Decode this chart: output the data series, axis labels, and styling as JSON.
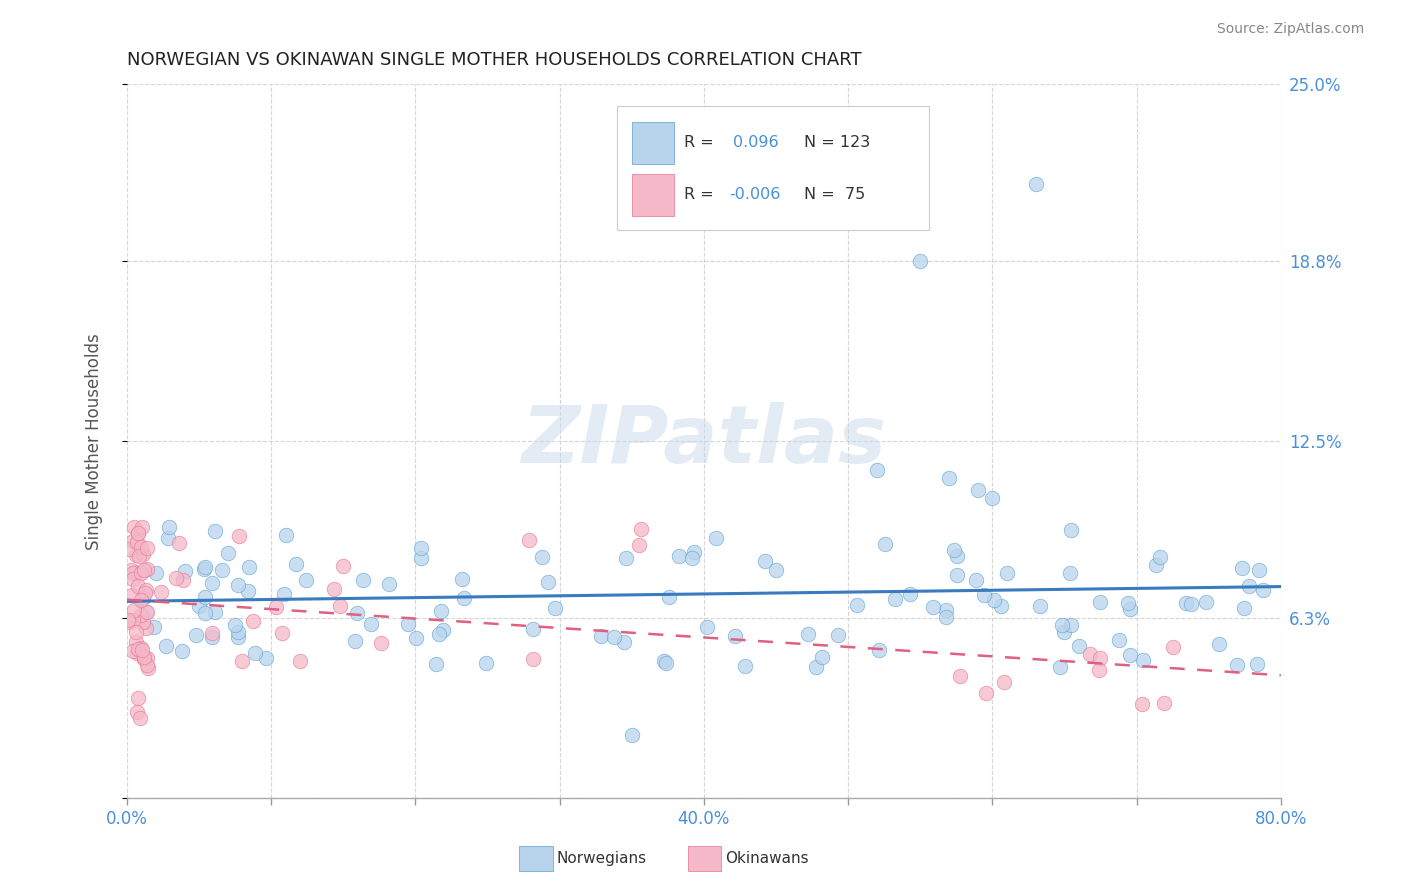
{
  "title": "NORWEGIAN VS OKINAWAN SINGLE MOTHER HOUSEHOLDS CORRELATION CHART",
  "source": "Source: ZipAtlas.com",
  "ylabel": "Single Mother Households",
  "xlim": [
    0,
    0.8
  ],
  "ylim": [
    0,
    0.25
  ],
  "yticks": [
    0.0,
    0.063,
    0.125,
    0.188,
    0.25
  ],
  "ytick_labels_right": [
    "",
    "6.3%",
    "12.5%",
    "18.8%",
    "25.0%"
  ],
  "r_norwegian": 0.096,
  "n_norwegian": 123,
  "r_okinawan": -0.006,
  "n_okinawan": 75,
  "norwegian_fill": "#b8d4ed",
  "okinawan_fill": "#f4b8c8",
  "norwegian_edge": "#5a9fd4",
  "okinawan_edge": "#e87090",
  "trend_norwegian_color": "#3a7abf",
  "trend_okinawan_color": "#e06080",
  "watermark_text": "ZIPatlas",
  "background_color": "#ffffff",
  "grid_color": "#cccccc",
  "legend_text_color": "#4a90d9",
  "axis_label_color": "#555555",
  "title_color": "#222222",
  "source_color": "#888888",
  "xtick_color": "#4a90d9",
  "ytick_color": "#4a90d9"
}
